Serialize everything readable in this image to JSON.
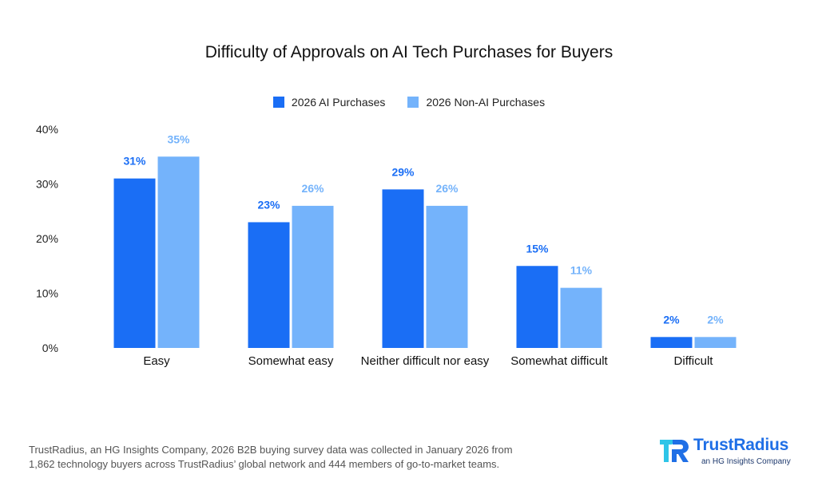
{
  "chart_data": {
    "type": "bar",
    "title": "Difficulty of Approvals on AI Tech Purchases for Buyers",
    "categories": [
      "Easy",
      "Somewhat easy",
      "Neither difficult nor easy",
      "Somewhat difficult",
      "Difficult"
    ],
    "series": [
      {
        "name": "2026 AI Purchases",
        "values": [
          31,
          23,
          29,
          15,
          2
        ],
        "labels": [
          "31%",
          "23%",
          "29%",
          "15%",
          "2%"
        ],
        "color": "#1a6ef5"
      },
      {
        "name": "2026 Non-AI Purchases",
        "values": [
          35,
          26,
          26,
          11,
          2
        ],
        "labels": [
          "35%",
          "26%",
          "26%",
          "11%",
          "2%"
        ],
        "color": "#74b3fb"
      }
    ],
    "ylim": [
      0,
      40
    ],
    "yticks": [
      "0%",
      "10%",
      "20%",
      "30%",
      "40%"
    ],
    "grid": false,
    "legend_position": "top-center"
  },
  "footer": {
    "line1": "TrustRadius, an HG Insights Company, 2026 B2B buying survey data was collected in January 2026 from",
    "line2": "1,862 technology buyers across TrustRadius’ global network and 444 members of go-to-market teams."
  },
  "logo": {
    "wordmark": "TrustRadius",
    "tagline": "an HG Insights Company",
    "icon": "trustradius-logo-icon"
  },
  "colors": {
    "ai": "#1a6ef5",
    "non_ai": "#74b3fb",
    "brand": "#1f6fe6"
  }
}
